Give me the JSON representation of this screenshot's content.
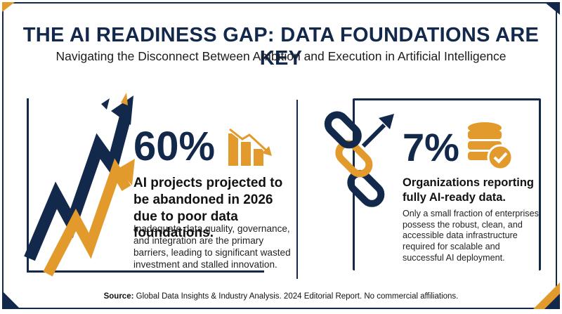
{
  "header": {
    "title": "THE AI READINESS GAP: DATA FOUNDATIONS ARE KEY",
    "subtitle": "Navigating the Disconnect Between Ambition and Execution in Artificial Intelligence"
  },
  "left": {
    "stat": "60%",
    "headline": "AI projects projected to be abandoned in 2026 due to poor data foundations.",
    "body": "Inadequate data quality, governance, and integration are the primary barriers, leading to significant wasted investment and stalled innovation."
  },
  "right": {
    "stat": "7%",
    "headline": "Organizations reporting fully AI-ready data.",
    "body": "Only a small fraction of enterprises possess the robust, clean, and accessible data infrastructure required for scalable and successful AI deployment."
  },
  "footer": {
    "source_label": "Source:",
    "source_text": "Global Data Insights & Industry Analysis. 2024 Editorial Report. No commercial affiliations."
  },
  "colors": {
    "navy": "#13294b",
    "gold": "#e39a2c"
  },
  "icons": [
    "rising-arrows-icon",
    "declining-chart-icon",
    "chain-link-icon",
    "database-check-icon"
  ]
}
